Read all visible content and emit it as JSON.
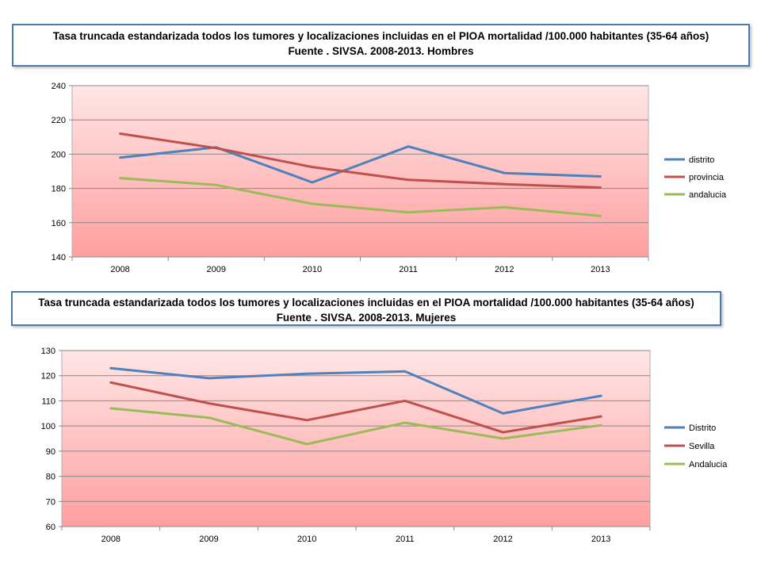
{
  "charts_titles": [
    {
      "line1": "Tasa truncada estandarizada todos los tumores y localizaciones incluidas en el PIOA mortalidad /100.000 habitantes (35-64 años)",
      "line2": "Fuente . SIVSA. 2008-2013.  Hombres"
    },
    {
      "line1": "Tasa truncada estandarizada todos los tumores y localizaciones incluidas en el PIOA mortalidad /100.000 habitantes (35-64 años)",
      "line2": "Fuente . SIVSA. 2008-2013. Mujeres"
    }
  ],
  "colors": {
    "series_blue": "#4f81bd",
    "series_red": "#c0504d",
    "series_green": "#9bbb59",
    "plot_top": "#ffe6e6",
    "plot_bottom": "#ff9f9f",
    "title_border": "#4a7ab0"
  },
  "chart_data": [
    {
      "type": "line",
      "categories": [
        "2008",
        "2009",
        "2010",
        "2011",
        "2012",
        "2013"
      ],
      "ylim": [
        140,
        240
      ],
      "yticks": [
        "140",
        "160",
        "180",
        "200",
        "220",
        "240"
      ],
      "grid": true,
      "legend_position": "right",
      "series": [
        {
          "name": "distrito",
          "values": [
            198,
            204,
            183.5,
            204.5,
            189,
            187
          ]
        },
        {
          "name": "provincia",
          "values": [
            212,
            203.5,
            192.5,
            185,
            182.5,
            180.5
          ]
        },
        {
          "name": "andalucia",
          "values": [
            186,
            182,
            171,
            166,
            169,
            164
          ]
        }
      ]
    },
    {
      "type": "line",
      "categories": [
        "2008",
        "2009",
        "2010",
        "2011",
        "2012",
        "2013"
      ],
      "ylim": [
        60,
        130
      ],
      "yticks": [
        "60",
        "70",
        "80",
        "90",
        "100",
        "110",
        "120",
        "130"
      ],
      "grid": true,
      "legend_position": "right",
      "series": [
        {
          "name": "Distrito",
          "values": [
            123,
            119,
            120.8,
            121.7,
            105,
            112
          ]
        },
        {
          "name": "Sevilla",
          "values": [
            117.3,
            109,
            102.3,
            110,
            97.5,
            103.8
          ]
        },
        {
          "name": "Andalucia",
          "values": [
            107,
            103.3,
            92.8,
            101.3,
            95,
            100.3
          ]
        }
      ]
    }
  ]
}
